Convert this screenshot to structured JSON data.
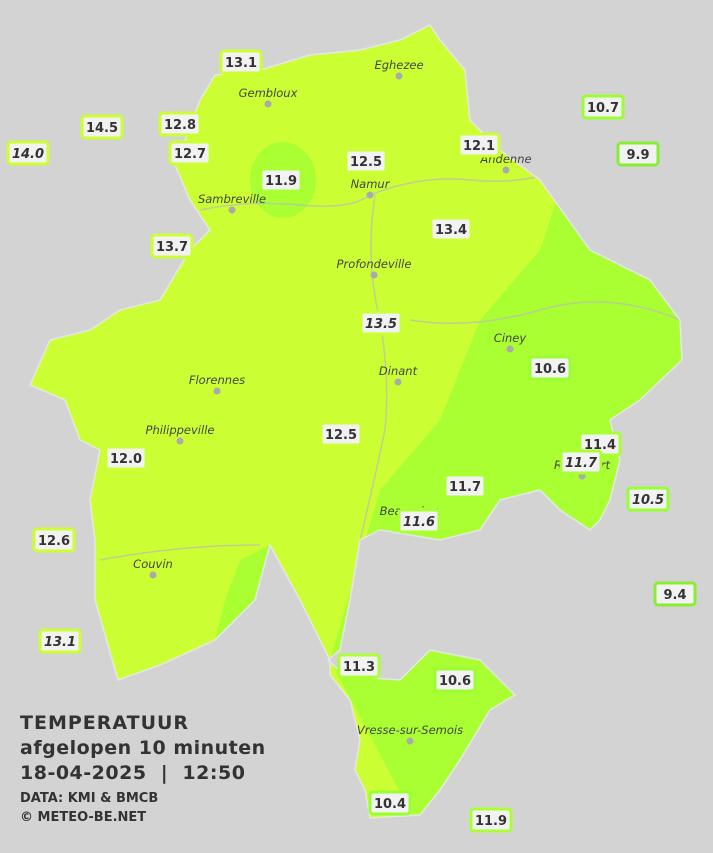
{
  "title": {
    "line1": "TEMPERATUUR",
    "line2": "afgelopen 10 minuten",
    "line3": "18-04-2025  |  12:50",
    "source": "DATA: KMI & BMCB",
    "copyright": "© METEO-BE.NET"
  },
  "cities": [
    "Eghezee",
    "Gembloux",
    "Andenne",
    "Namur",
    "Sambreville",
    "Profondeville",
    "Ciney",
    "Dinant",
    "Florennes",
    "Philippeville",
    "Rochefort",
    "Beauraing",
    "Couvin",
    "Vresse-sur-Semois"
  ],
  "stations": [
    {
      "value": "13.1",
      "italic": false,
      "border": "#ccff33"
    },
    {
      "value": "14.5",
      "italic": false,
      "border": "#ccff33"
    },
    {
      "value": "12.8",
      "italic": false,
      "border": "#ccff33"
    },
    {
      "value": "14.0",
      "italic": true,
      "border": "#ccff33"
    },
    {
      "value": "12.7",
      "italic": false,
      "border": "#ccff33"
    },
    {
      "value": "11.9",
      "italic": false,
      "border": "#aaff33"
    },
    {
      "value": "12.5",
      "italic": false,
      "border": "#ccff33"
    },
    {
      "value": "12.1",
      "italic": false,
      "border": "#ccff33"
    },
    {
      "value": "10.7",
      "italic": false,
      "border": "#99ff33"
    },
    {
      "value": "9.9",
      "italic": false,
      "border": "#88ee33"
    },
    {
      "value": "13.7",
      "italic": false,
      "border": "#ccff33"
    },
    {
      "value": "13.4",
      "italic": false,
      "border": "#ccff33"
    },
    {
      "value": "13.5",
      "italic": true,
      "border": "#ccff33"
    },
    {
      "value": "10.6",
      "italic": false,
      "border": "#99ff33"
    },
    {
      "value": "12.5",
      "italic": false,
      "border": "#ccff33"
    },
    {
      "value": "12.0",
      "italic": false,
      "border": "#ccff33"
    },
    {
      "value": "11.4",
      "italic": false,
      "border": "#aaff33"
    },
    {
      "value": "11.7",
      "italic": true,
      "border": "#aaff33"
    },
    {
      "value": "11.7",
      "italic": false,
      "border": "#aaff33"
    },
    {
      "value": "10.5",
      "italic": true,
      "border": "#99ff33"
    },
    {
      "value": "11.6",
      "italic": true,
      "border": "#aaff33"
    },
    {
      "value": "12.6",
      "italic": false,
      "border": "#ccff33"
    },
    {
      "value": "9.4",
      "italic": false,
      "border": "#88ee33"
    },
    {
      "value": "13.1",
      "italic": true,
      "border": "#ccff33"
    },
    {
      "value": "11.3",
      "italic": false,
      "border": "#aaff33"
    },
    {
      "value": "10.6",
      "italic": false,
      "border": "#99ff33"
    },
    {
      "value": "10.4",
      "italic": false,
      "border": "#99ff33"
    },
    {
      "value": "11.9",
      "italic": false,
      "border": "#aaff33"
    }
  ]
}
